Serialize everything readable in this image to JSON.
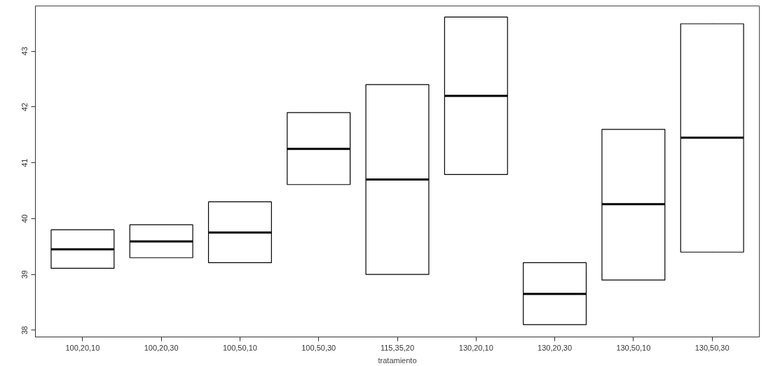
{
  "chart_data": {
    "type": "box",
    "xlabel": "tratamiento",
    "categories": [
      "100,20,10",
      "100,20,30",
      "100,50,10",
      "100,50,30",
      "115,35,20",
      "130,20,10",
      "130,20,30",
      "130,50,10",
      "130,50,30"
    ],
    "boxes": [
      {
        "low": 39.11,
        "q1": 39.11,
        "median": 39.45,
        "q3": 39.8,
        "high": 39.8
      },
      {
        "low": 39.3,
        "q1": 39.3,
        "median": 39.59,
        "q3": 39.89,
        "high": 39.89
      },
      {
        "low": 39.21,
        "q1": 39.21,
        "median": 39.75,
        "q3": 40.3,
        "high": 40.3
      },
      {
        "low": 40.61,
        "q1": 40.61,
        "median": 41.25,
        "q3": 41.9,
        "high": 41.9
      },
      {
        "low": 39.0,
        "q1": 39.0,
        "median": 40.7,
        "q3": 42.4,
        "high": 42.4
      },
      {
        "low": 40.79,
        "q1": 40.79,
        "median": 42.2,
        "q3": 43.61,
        "high": 43.61
      },
      {
        "low": 38.1,
        "q1": 38.1,
        "median": 38.65,
        "q3": 39.21,
        "high": 39.21
      },
      {
        "low": 38.9,
        "q1": 38.9,
        "median": 40.26,
        "q3": 41.6,
        "high": 41.6
      },
      {
        "low": 39.4,
        "q1": 39.4,
        "median": 41.45,
        "q3": 43.49,
        "high": 43.49
      }
    ],
    "ylim": [
      37.88,
      43.81
    ],
    "yticks": [
      38,
      39,
      40,
      41,
      42,
      43
    ],
    "grid": false
  }
}
